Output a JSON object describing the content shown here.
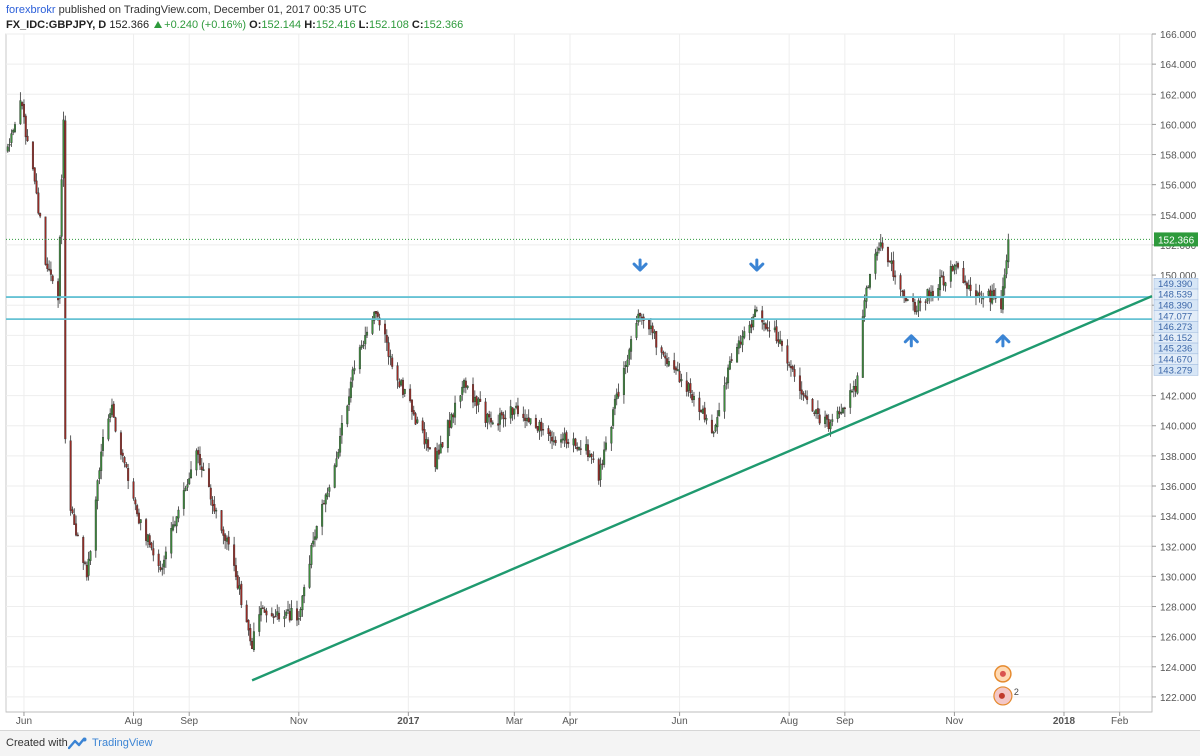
{
  "header": {
    "author": "forexbrokr",
    "published_text": "published on TradingView.com, December 01, 2017 00:35 UTC",
    "symbol": "FX_IDC:GBPJPY, D",
    "last": "152.366",
    "change": "+0.240 (+0.16%)",
    "ohlc": [
      {
        "label": "O:",
        "value": "152.144"
      },
      {
        "label": "H:",
        "value": "152.416"
      },
      {
        "label": "L:",
        "value": "152.108"
      },
      {
        "label": "C:",
        "value": "152.366"
      }
    ]
  },
  "footer": {
    "created_text": "Created with",
    "brand": "TradingView",
    "logo_icon": "tradingview-logo-icon"
  },
  "chart_data": {
    "type": "candlestick",
    "symbol": "FX_IDC:GBPJPY",
    "interval": "D",
    "y_range": [
      121,
      166
    ],
    "y_ticks": [
      "122.000",
      "124.000",
      "126.000",
      "128.000",
      "130.000",
      "132.000",
      "134.000",
      "136.000",
      "138.000",
      "140.000",
      "142.000",
      "144.000",
      "146.000",
      "148.000",
      "150.000",
      "152.000",
      "154.000",
      "156.000",
      "158.000",
      "160.000",
      "162.000",
      "164.000",
      "166.000"
    ],
    "x_range": [
      "2016-05-22",
      "2018-02-19"
    ],
    "x_ticks": [
      {
        "date": "2016-06-01",
        "label": "Jun",
        "bold": false
      },
      {
        "date": "2016-08-01",
        "label": "Aug",
        "bold": false
      },
      {
        "date": "2016-09-01",
        "label": "Sep",
        "bold": false
      },
      {
        "date": "2016-11-01",
        "label": "Nov",
        "bold": false
      },
      {
        "date": "2017-01-01",
        "label": "2017",
        "bold": true
      },
      {
        "date": "2017-03-01",
        "label": "Mar",
        "bold": false
      },
      {
        "date": "2017-04-01",
        "label": "Apr",
        "bold": false
      },
      {
        "date": "2017-06-01",
        "label": "Jun",
        "bold": false
      },
      {
        "date": "2017-08-01",
        "label": "Aug",
        "bold": false
      },
      {
        "date": "2017-09-01",
        "label": "Sep",
        "bold": false
      },
      {
        "date": "2017-11-01",
        "label": "Nov",
        "bold": false
      },
      {
        "date": "2018-01-01",
        "label": "2018",
        "bold": true
      },
      {
        "date": "2018-02-01",
        "label": "Feb",
        "bold": false
      }
    ],
    "path_anchors": [
      {
        "date": "2016-05-23",
        "price": 158.5
      },
      {
        "date": "2016-05-30",
        "price": 161.5
      },
      {
        "date": "2016-06-06",
        "price": 157.0
      },
      {
        "date": "2016-06-13",
        "price": 151.0
      },
      {
        "date": "2016-06-20",
        "price": 148.5
      },
      {
        "date": "2016-06-23",
        "price": 160.0
      },
      {
        "date": "2016-06-24",
        "price": 139.5
      },
      {
        "date": "2016-06-27",
        "price": 134.5
      },
      {
        "date": "2016-07-06",
        "price": 130.0
      },
      {
        "date": "2016-07-15",
        "price": 139.0
      },
      {
        "date": "2016-07-20",
        "price": 141.0
      },
      {
        "date": "2016-08-03",
        "price": 134.0
      },
      {
        "date": "2016-08-16",
        "price": 130.5
      },
      {
        "date": "2016-09-05",
        "price": 138.0
      },
      {
        "date": "2016-09-23",
        "price": 132.0
      },
      {
        "date": "2016-10-06",
        "price": 125.5
      },
      {
        "date": "2016-10-10",
        "price": 127.5
      },
      {
        "date": "2016-11-01",
        "price": 127.5
      },
      {
        "date": "2016-11-09",
        "price": 132.5
      },
      {
        "date": "2016-11-22",
        "price": 138.0
      },
      {
        "date": "2016-12-01",
        "price": 143.5
      },
      {
        "date": "2016-12-14",
        "price": 147.8
      },
      {
        "date": "2016-12-23",
        "price": 144.0
      },
      {
        "date": "2017-01-16",
        "price": 137.5
      },
      {
        "date": "2017-02-01",
        "price": 143.0
      },
      {
        "date": "2017-02-16",
        "price": 140.0
      },
      {
        "date": "2017-03-01",
        "price": 141.0
      },
      {
        "date": "2017-03-20",
        "price": 139.5
      },
      {
        "date": "2017-04-10",
        "price": 138.5
      },
      {
        "date": "2017-04-17",
        "price": 136.5
      },
      {
        "date": "2017-05-01",
        "price": 144.0
      },
      {
        "date": "2017-05-10",
        "price": 147.5
      },
      {
        "date": "2017-05-22",
        "price": 145.0
      },
      {
        "date": "2017-06-08",
        "price": 142.0
      },
      {
        "date": "2017-06-20",
        "price": 139.5
      },
      {
        "date": "2017-07-01",
        "price": 145.0
      },
      {
        "date": "2017-07-14",
        "price": 147.5
      },
      {
        "date": "2017-07-25",
        "price": 146.0
      },
      {
        "date": "2017-08-11",
        "price": 141.5
      },
      {
        "date": "2017-08-24",
        "price": 139.8
      },
      {
        "date": "2017-09-07",
        "price": 142.5
      },
      {
        "date": "2017-09-13",
        "price": 149.0
      },
      {
        "date": "2017-09-21",
        "price": 152.5
      },
      {
        "date": "2017-10-05",
        "price": 148.0
      },
      {
        "date": "2017-10-10",
        "price": 147.8
      },
      {
        "date": "2017-10-20",
        "price": 149.0
      },
      {
        "date": "2017-11-01",
        "price": 150.5
      },
      {
        "date": "2017-11-10",
        "price": 149.0
      },
      {
        "date": "2017-11-22",
        "price": 148.5
      },
      {
        "date": "2017-11-27",
        "price": 148.2
      },
      {
        "date": "2017-12-01",
        "price": 152.366
      }
    ],
    "horizontal_lines": [
      {
        "price": 148.539,
        "color": "#66c2d4"
      },
      {
        "price": 147.077,
        "color": "#66c2d4"
      }
    ],
    "trendline": {
      "from": {
        "date": "2016-10-06",
        "price": 123.1
      },
      "to": {
        "date": "2018-02-19",
        "price": 148.6
      },
      "color": "#1f9a6f"
    },
    "arrows": [
      {
        "date": "2017-05-10",
        "price": 150.4,
        "direction": "down"
      },
      {
        "date": "2017-07-14",
        "price": 150.4,
        "direction": "down"
      },
      {
        "date": "2017-10-08",
        "price": 145.9,
        "direction": "up"
      },
      {
        "date": "2017-11-28",
        "price": 145.9,
        "direction": "up"
      }
    ],
    "arrow_color": "#3b84d4",
    "last_price": {
      "price": 152.366,
      "label": "152.366",
      "color": "#2e9a3c"
    },
    "price_labels": [
      {
        "price": 149.39,
        "label": "149.390"
      },
      {
        "price": 148.539,
        "label": "148.539"
      },
      {
        "price": 148.39,
        "label": "148.390"
      },
      {
        "price": 147.077,
        "label": "147.077"
      },
      {
        "price": 146.273,
        "label": "146.273"
      },
      {
        "price": 146.152,
        "label": "146.152"
      },
      {
        "price": 145.236,
        "label": "145.236"
      },
      {
        "price": 144.67,
        "label": "144.670"
      },
      {
        "price": 143.279,
        "label": "143.279"
      }
    ],
    "price_label_color": "#3b66a8",
    "event_marker": {
      "date": "2017-11-28",
      "price": 122.2,
      "count": "2"
    },
    "up_color": "#3d8f3d",
    "down_color": "#9e2b25"
  }
}
